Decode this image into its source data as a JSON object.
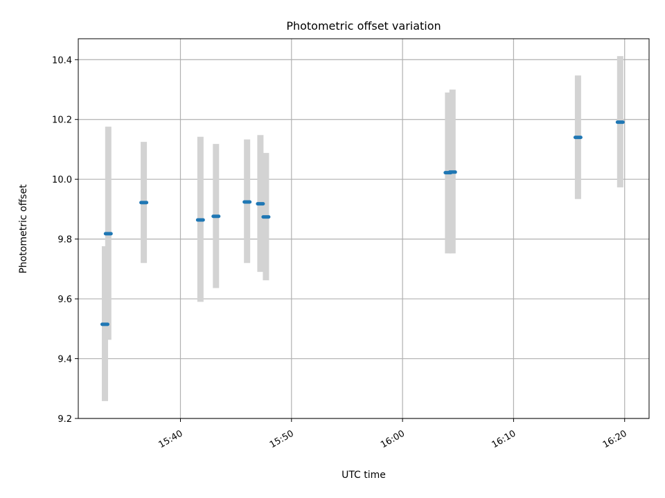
{
  "chart_data": {
    "type": "scatter",
    "title": "Photometric offset variation",
    "xlabel": "UTC time",
    "ylabel": "Photometric offset",
    "x_ticks": [
      "15:40",
      "15:50",
      "16:00",
      "16:10",
      "16:20"
    ],
    "x_tick_minutes": [
      940,
      950,
      960,
      970,
      980
    ],
    "xlim": [
      "15:30.8",
      "16:22.2"
    ],
    "xlim_minutes": [
      930.8,
      982.2
    ],
    "y_ticks": [
      "9.2",
      "9.4",
      "9.6",
      "9.8",
      "10.0",
      "10.2",
      "10.4"
    ],
    "ylim": [
      9.2,
      10.47
    ],
    "grid": true,
    "marker_color": "#1f77b4",
    "errorbar_color": "#d3d3d3",
    "series": [
      {
        "x": [
          "15:33.2",
          "15:33.5",
          "15:36.7",
          "15:41.8",
          "15:43.2",
          "15:46.0",
          "15:47.2",
          "15:47.7",
          "16:04.1",
          "16:04.5",
          "16:15.8",
          "16:19.6"
        ],
        "x_minutes": [
          933.2,
          933.5,
          936.7,
          941.8,
          943.2,
          946.0,
          947.2,
          947.7,
          964.1,
          964.5,
          975.8,
          979.6
        ],
        "y": [
          9.515,
          9.818,
          9.922,
          9.864,
          9.876,
          9.924,
          9.918,
          9.874,
          10.022,
          10.024,
          10.14,
          10.191
        ],
        "yerr_low": [
          9.258,
          9.463,
          9.72,
          9.59,
          9.636,
          9.72,
          9.69,
          9.662,
          9.752,
          9.752,
          9.934,
          9.973
        ],
        "yerr_high": [
          9.776,
          10.176,
          10.125,
          10.142,
          10.118,
          10.133,
          10.148,
          10.088,
          10.29,
          10.3,
          10.347,
          10.412
        ]
      }
    ]
  }
}
